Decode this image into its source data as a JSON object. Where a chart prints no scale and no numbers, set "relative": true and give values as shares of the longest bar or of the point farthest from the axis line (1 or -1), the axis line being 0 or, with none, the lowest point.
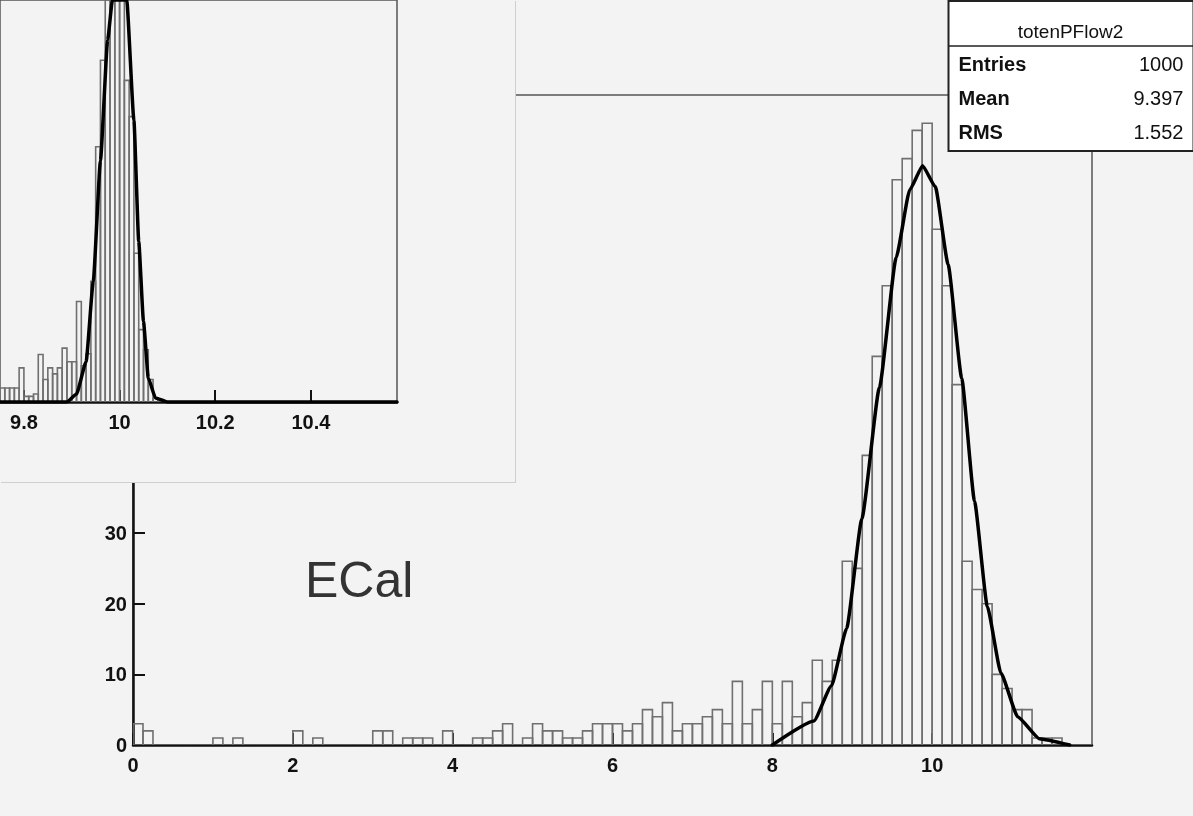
{
  "chart_data": [
    {
      "type": "histogram",
      "xlim": [
        0,
        12
      ],
      "ylim": [
        0,
        92
      ],
      "xticks": [
        0,
        2,
        4,
        6,
        8,
        10
      ],
      "yticks": [
        0,
        10,
        20,
        30
      ],
      "grid": false,
      "marker": "none",
      "line_style": "solid",
      "annotations": [
        "ECal",
        "totenPFlow2",
        "Entries",
        "1000",
        "Mean",
        "9.397",
        "RMS",
        "1.552"
      ],
      "series": [
        {
          "color": "#707070",
          "bins": [
            0,
            0.125,
            0.25,
            0.375,
            0.5,
            0.625,
            0.75,
            0.875,
            1,
            1.125,
            1.25,
            1.375,
            1.5,
            1.625,
            1.75,
            1.875,
            2,
            2.125,
            2.25,
            2.375,
            2.5,
            2.625,
            2.75,
            2.875,
            3,
            3.125,
            3.25,
            3.375,
            3.5,
            3.625,
            3.75,
            3.875,
            4,
            4.125,
            4.25,
            4.375,
            4.5,
            4.625,
            4.75,
            4.875,
            5,
            5.125,
            5.25,
            5.375,
            5.5,
            5.625,
            5.75,
            5.875,
            6,
            6.125,
            6.25,
            6.375,
            6.5,
            6.625,
            6.75,
            6.875,
            7,
            7.125,
            7.25,
            7.375,
            7.5,
            7.625,
            7.75,
            7.875,
            8,
            8.125,
            8.25,
            8.375,
            8.5,
            8.625,
            8.75,
            8.875,
            9,
            9.125,
            9.25,
            9.375,
            9.5,
            9.625,
            9.75,
            9.875,
            10,
            10.125,
            10.25,
            10.375,
            10.5,
            10.625,
            10.75,
            10.875,
            11,
            11.125,
            11.25,
            11.375,
            11.5,
            11.625,
            11.75,
            11.875,
            12
          ],
          "values": [
            3,
            2,
            0,
            0,
            0,
            0,
            0,
            0,
            1,
            0,
            1,
            0,
            0,
            0,
            0,
            0,
            2,
            0,
            1,
            0,
            0,
            0,
            0,
            0,
            2,
            2,
            0,
            1,
            1,
            1,
            0,
            2,
            0,
            0,
            1,
            1,
            2,
            3,
            0,
            1,
            3,
            2,
            2,
            1,
            1,
            2,
            3,
            3,
            3,
            2,
            3,
            5,
            4,
            6,
            2,
            3,
            3,
            4,
            5,
            3,
            9,
            3,
            5,
            9,
            3,
            9,
            4,
            6,
            12,
            9,
            12,
            26,
            25,
            41,
            55,
            65,
            80,
            83,
            87,
            88,
            73,
            65,
            51,
            26,
            22,
            20,
            10,
            8,
            5,
            5,
            1,
            1,
            1,
            0,
            0,
            0
          ]
        },
        {
          "type": "line",
          "color": "#000000",
          "x": [
            8.0,
            8.52,
            8.74,
            8.93,
            9.12,
            9.34,
            9.55,
            9.72,
            9.88,
            10.04,
            10.2,
            10.37,
            10.53,
            10.69,
            10.86,
            11.07,
            11.34,
            11.72
          ],
          "values": [
            0,
            3.4,
            8.4,
            16.5,
            32,
            50.6,
            69,
            78.6,
            82,
            79,
            68,
            51.9,
            34.5,
            19.6,
            10.2,
            4,
            0.9,
            0
          ]
        }
      ]
    },
    {
      "type": "histogram",
      "relative": true,
      "xlim": [
        9.75,
        10.58
      ],
      "xticks": [
        9.8,
        10,
        10.2,
        10.4
      ],
      "tick_labels": "x",
      "grid": false,
      "marker": "none",
      "line_style": "solid",
      "series": [
        {
          "color": "#707070",
          "bins": [
            9.75,
            9.76,
            9.77,
            9.78,
            9.79,
            9.8,
            9.81,
            9.82,
            9.83,
            9.84,
            9.85,
            9.86,
            9.87,
            9.88,
            9.89,
            9.9,
            9.91,
            9.92,
            9.93,
            9.94,
            9.95,
            9.96,
            9.97,
            9.98,
            9.99,
            10,
            10.01,
            10.02,
            10.03,
            10.04,
            10.05,
            10.06,
            10.07,
            10.08,
            10.09,
            10.1,
            10.11,
            10.12,
            10.13,
            10.14,
            10.15,
            10.16,
            10.17,
            10.18,
            10.19,
            10.2,
            10.21,
            10.22,
            10.23,
            10.24,
            10.25,
            10.26,
            10.27,
            10.28,
            10.29,
            10.3,
            10.31,
            10.32,
            10.33,
            10.34,
            10.35,
            10.36,
            10.37,
            10.38,
            10.39,
            10.4,
            10.41,
            10.42,
            10.43,
            10.44,
            10.45,
            10.46,
            10.47,
            10.48,
            10.49,
            10.5,
            10.51,
            10.52,
            10.53,
            10.54,
            10.55,
            10.56,
            10.57,
            10.58
          ],
          "values": [
            0.035,
            0.035,
            0.035,
            0.035,
            0.085,
            0.014,
            0.014,
            0.02,
            0.118,
            0.056,
            0.085,
            0.07,
            0.085,
            0.134,
            0.1,
            0.1,
            0.25,
            0.09,
            0.12,
            0.3,
            0.635,
            0.85,
            1,
            1,
            1,
            1,
            0.8,
            0.71,
            0.37,
            0.18,
            0.13,
            0.056,
            0.01,
            0,
            0,
            0,
            0,
            0,
            0,
            0,
            0,
            0,
            0,
            0,
            0,
            0,
            0,
            0,
            0,
            0,
            0,
            0,
            0,
            0,
            0,
            0,
            0,
            0,
            0,
            0,
            0,
            0,
            0,
            0,
            0,
            0,
            0,
            0,
            0,
            0,
            0,
            0,
            0,
            0,
            0,
            0,
            0,
            0,
            0,
            0,
            0,
            0,
            0
          ]
        },
        {
          "type": "line",
          "color": "#000000",
          "x": [
            9.75,
            9.89,
            9.91,
            9.93,
            9.945,
            9.96,
            9.975,
            9.985,
            10.015,
            10.03,
            10.04,
            10.05,
            10.06,
            10.075,
            10.1,
            10.58
          ],
          "values": [
            0,
            0,
            0.02,
            0.1,
            0.3,
            0.6,
            0.9,
            1,
            1,
            0.7,
            0.4,
            0.2,
            0.06,
            0.01,
            0,
            0
          ]
        }
      ]
    }
  ]
}
